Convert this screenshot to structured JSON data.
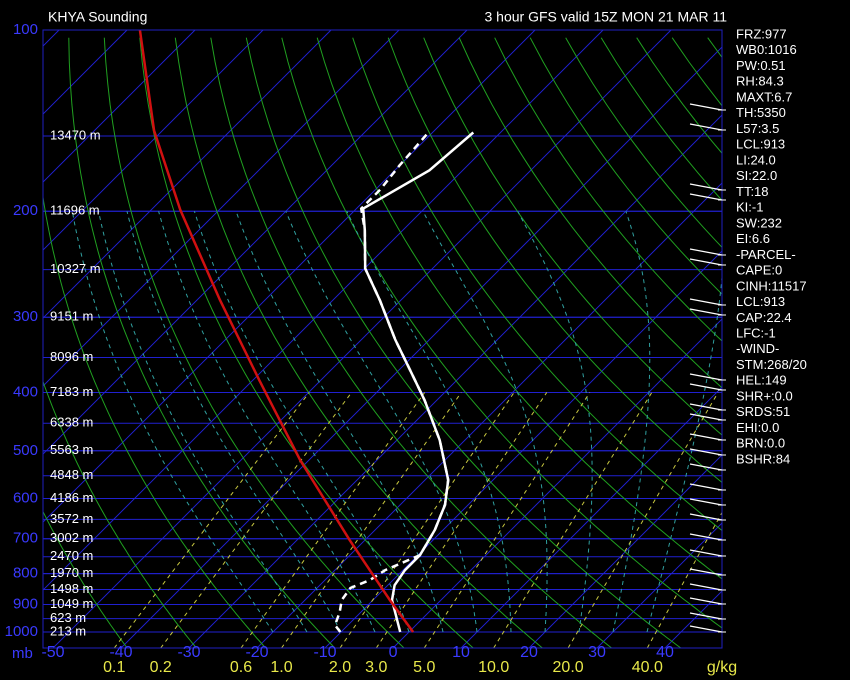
{
  "chart_data": {
    "type": "skewt",
    "title": "KHYA Sounding",
    "subtitle": "3 hour GFS valid 15Z MON 21 MAR 11",
    "ylabel": "mb",
    "log_y": true,
    "ylim": [
      100,
      1063
    ],
    "yticks": [
      100,
      200,
      300,
      400,
      500,
      600,
      700,
      800,
      900,
      1000
    ],
    "xticks": [
      -50,
      -40,
      -30,
      -20,
      -10,
      0,
      10,
      20,
      30,
      40
    ],
    "height_levels": {
      "pressures": [
        150,
        200,
        250,
        300,
        350,
        400,
        450,
        500,
        550,
        600,
        650,
        700,
        750,
        800,
        850,
        900,
        950,
        1000
      ],
      "labels": [
        "13470 m",
        "11696 m",
        "10327 m",
        "9151 m",
        "8096 m",
        "7183 m",
        "6338 m",
        "5563 m",
        "4848 m",
        "4186 m",
        "3572 m",
        "3002 m",
        "2470 m",
        "1970 m",
        "1498 m",
        "1049 m",
        "623 m",
        "213 m"
      ]
    },
    "mixing_ratio": {
      "unit": "g/kg",
      "ticks": [
        0.1,
        0.2,
        {
          "value": 0.6,
          "label": "0.6"
        },
        {
          "value": 1,
          "label": "1.0"
        },
        {
          "value": 2,
          "label": "2.0"
        },
        {
          "value": 3,
          "label": "3.0"
        },
        {
          "value": 5,
          "label": "5.0"
        },
        {
          "value": 10,
          "label": "10.0"
        },
        {
          "value": 20,
          "label": "20.0"
        },
        {
          "value": 40,
          "label": "40.0"
        }
      ]
    },
    "series": [
      {
        "color": "#ffffff",
        "dashed": false,
        "pressure": [
          1000,
          885,
          836,
          789,
          745,
          677,
          615,
          559,
          480,
          412,
          367,
          327,
          281,
          249,
          215,
          198,
          171,
          148
        ],
        "values": [
          -1.3,
          -7.2,
          -9.0,
          -9.7,
          -9.7,
          -11.2,
          -13.4,
          -16.6,
          -23.7,
          -31.8,
          -38.4,
          -45.0,
          -53.1,
          -59.9,
          -65.6,
          -69.0,
          -64.9,
          -64.0
        ]
      },
      {
        "color": "#ffffff",
        "dashed": true,
        "pressure": [
          1000,
          974,
          927,
          885,
          845,
          820,
          789,
          745,
          677,
          615,
          559,
          480,
          412,
          367,
          327,
          281,
          249,
          215,
          198,
          184,
          168,
          148
        ],
        "values": [
          -10.1,
          -11.9,
          -13.1,
          -14.6,
          -15.1,
          -13.4,
          -12.6,
          -9.7,
          -11.2,
          -13.4,
          -16.6,
          -23.7,
          -31.8,
          -38.4,
          -45.0,
          -53.1,
          -59.9,
          -65.6,
          -69.3,
          -69.3,
          -70.0,
          -70.6
        ]
      },
      {
        "color": "#d01010",
        "dashed": false,
        "pressure": [
          100,
          147,
          199,
          281,
          382,
          518,
          704,
          885,
          1000
        ],
        "values": [
          -128.1,
          -111.2,
          -95.7,
          -76.6,
          -59.0,
          -41.3,
          -22.2,
          -7.5,
          0.6
        ]
      }
    ],
    "indices": [
      "FRZ:977",
      "WB0:1016",
      "PW:0.51",
      "RH:84.3",
      "MAXT:6.7",
      "TH:5350",
      "L57:3.5",
      "LCL:913",
      "LI:24.0",
      "SI:22.0",
      "TT:18",
      "KI:-1",
      "SW:232",
      "EI:6.6",
      "-PARCEL-",
      "CAPE:0",
      "CINH:11517",
      "LCL:913",
      "CAP:22.4",
      "LFC:-1",
      "-WIND-",
      "STM:268/20",
      "HEL:149",
      "SHR+:0.0",
      "SRDS:51",
      "EHI:0.0",
      "BRN:0.0",
      "BSHR:84"
    ]
  }
}
